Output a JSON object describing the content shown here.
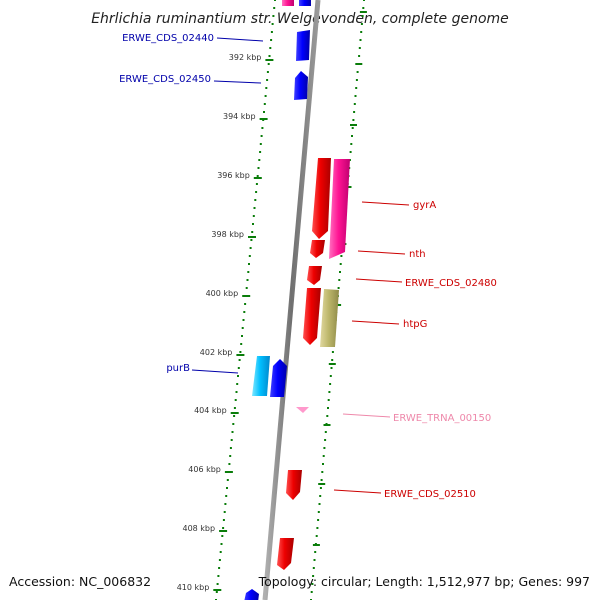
{
  "title": "Ehrlichia ruminantium str. Welgevonden, complete genome",
  "footer": {
    "accession": "Accession: NC_006832",
    "summary": "Topology: circular; Length: 1,512,977 bp; Genes: 997"
  },
  "colors": {
    "backbone": "#8a8a8a",
    "dots": "#0a7d0a",
    "plus_strand_label": "#0000aa",
    "minus_strand_label": "#cc0000",
    "trna_label": "#ee88aa"
  },
  "axis": {
    "unit": "kbp",
    "ticks": [
      "392 kbp",
      "394 kbp",
      "396 kbp",
      "398 kbp",
      "400 kbp",
      "402 kbp",
      "404 kbp",
      "406 kbp",
      "408 kbp",
      "410 kbp"
    ]
  },
  "labels": {
    "left": [
      {
        "text": "ERWE_CDS_02440",
        "color": "#0000aa"
      },
      {
        "text": "ERWE_CDS_02450",
        "color": "#0000aa"
      },
      {
        "text": "purB",
        "color": "#0000aa"
      }
    ],
    "right": [
      {
        "text": "gyrA",
        "color": "#cc0000"
      },
      {
        "text": "nth",
        "color": "#cc0000"
      },
      {
        "text": "ERWE_CDS_02480",
        "color": "#cc0000"
      },
      {
        "text": "htpG",
        "color": "#cc0000"
      },
      {
        "text": "ERWE_TRNA_00150",
        "color": "#ee88aa"
      },
      {
        "text": "ERWE_CDS_02510",
        "color": "#cc0000"
      }
    ]
  }
}
